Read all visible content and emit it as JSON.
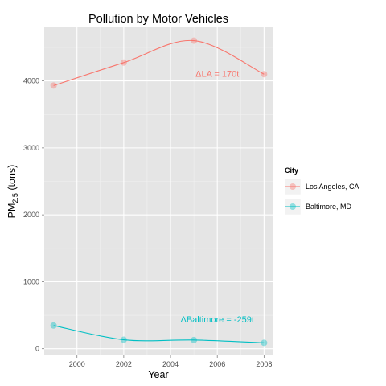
{
  "chart_data": {
    "type": "line",
    "title": "Pollution by Motor Vehicles",
    "xlabel": "Year",
    "ylabel": {
      "main": "PM",
      "sub": "2.5",
      "suffix": " (tons)"
    },
    "x_ticks": [
      2000,
      2002,
      2004,
      2006,
      2008
    ],
    "y_ticks": [
      0,
      1000,
      2000,
      3000,
      4000
    ],
    "xlim": [
      1998.6,
      2008.4
    ],
    "ylim": [
      -100,
      4800
    ],
    "grid": true,
    "legend": {
      "title": "City",
      "placement": "right"
    },
    "series": [
      {
        "name": "Los Angeles, CA",
        "color": "#F8766D",
        "x": [
          1999,
          2002,
          2005,
          2008
        ],
        "y": [
          3931,
          4274,
          4601,
          4101
        ]
      },
      {
        "name": "Baltimore, MD",
        "color": "#00BFC4",
        "x": [
          1999,
          2002,
          2005,
          2008
        ],
        "y": [
          347,
          134,
          130,
          88
        ]
      }
    ],
    "annotations": [
      {
        "text": "ΔLA = 170t",
        "x": 2006.0,
        "y": 4060,
        "series": 0
      },
      {
        "text": "ΔBaltimore = -259t",
        "x": 2006.0,
        "y": 390,
        "series": 1
      }
    ]
  }
}
